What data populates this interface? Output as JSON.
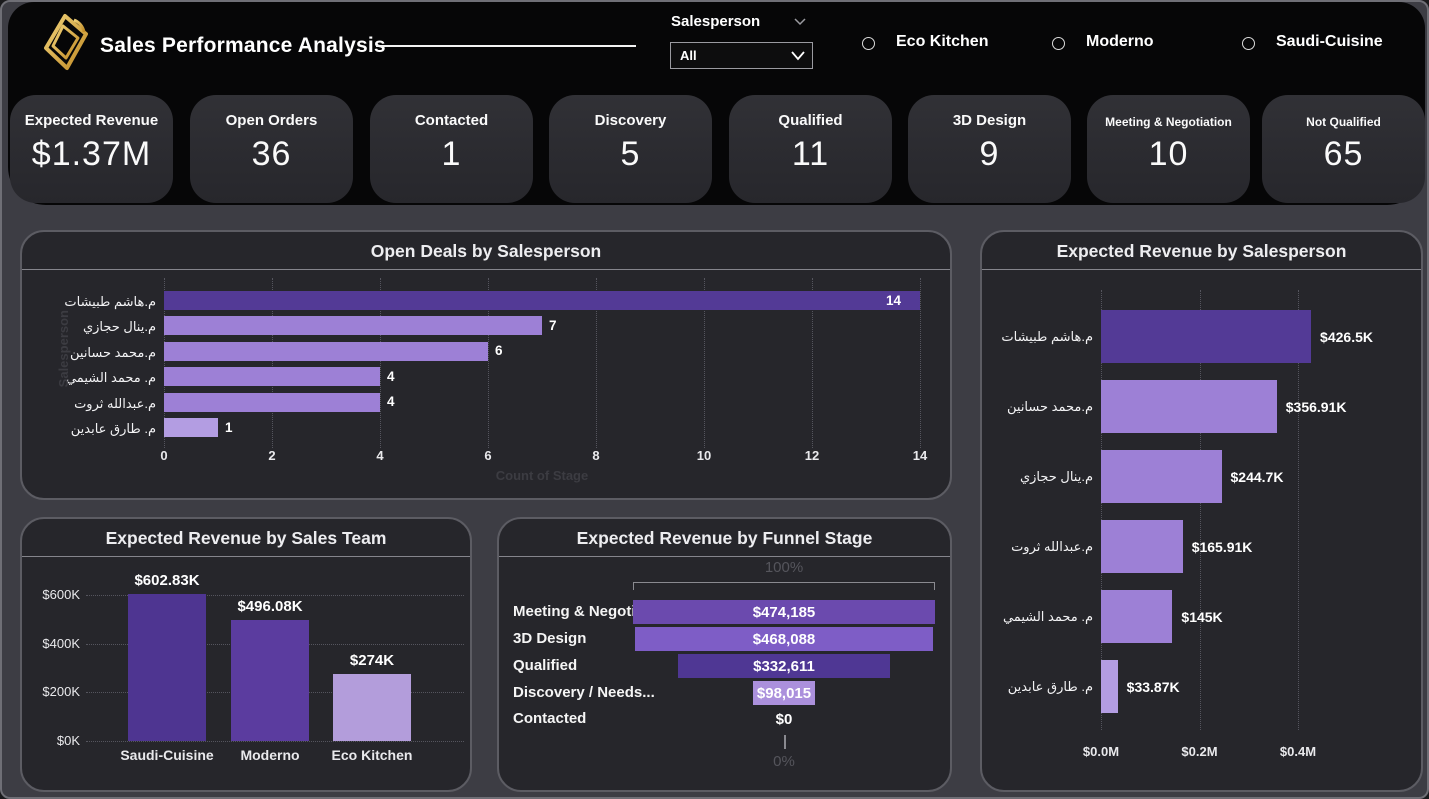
{
  "header": {
    "title": "Sales Performance Analysis",
    "slicer": {
      "label": "Salesperson",
      "value": "All"
    },
    "teams": [
      "Eco Kitchen",
      "Moderno",
      "Saudi-Cuisine"
    ]
  },
  "kpis": [
    {
      "label": "Expected Revenue",
      "value": "$1.37M"
    },
    {
      "label": "Open Orders",
      "value": "36"
    },
    {
      "label": "Contacted",
      "value": "1"
    },
    {
      "label": "Discovery",
      "value": "5"
    },
    {
      "label": "Qualified",
      "value": "11"
    },
    {
      "label": "3D Design",
      "value": "9"
    },
    {
      "label": "Meeting & Negotiation",
      "value": "10"
    },
    {
      "label": "Not Qualified",
      "value": "65"
    }
  ],
  "chart_data": [
    {
      "type": "bar",
      "orientation": "horizontal",
      "title": "Open Deals by Salesperson",
      "categories": [
        "م.هاشم طبيشات",
        "م.ينال حجازي",
        "م.محمد حسانين",
        "م. محمد الشيمي",
        "م.عبدالله ثروت",
        "م. طارق عابدين"
      ],
      "values": [
        14,
        7,
        6,
        4,
        4,
        1
      ],
      "bar_colors": [
        "#533a96",
        "#9d80d6",
        "#9d80d6",
        "#9d80d6",
        "#9d80d6",
        "#b39de2"
      ],
      "xlabel": "Count of Stage",
      "ylabel": "Salesperson",
      "x_ticks": [
        0,
        2,
        4,
        6,
        8,
        10,
        12,
        14
      ],
      "xlim": [
        0,
        14
      ],
      "grid": "dotted-vertical"
    },
    {
      "type": "bar",
      "orientation": "horizontal",
      "title": "Expected Revenue by Salesperson",
      "categories": [
        "م.هاشم طبيشات",
        "م.محمد حسانين",
        "م.ينال حجازي",
        "م.عبدالله ثروت",
        "م. محمد الشيمي",
        "م. طارق عابدين"
      ],
      "values": [
        426500,
        356910,
        244700,
        165910,
        145000,
        33870
      ],
      "value_labels": [
        "$426.5K",
        "$356.91K",
        "$244.7K",
        "$165.91K",
        "$145K",
        "$33.87K"
      ],
      "bar_colors": [
        "#533a96",
        "#9d80d6",
        "#9d80d6",
        "#9d80d6",
        "#9d80d6",
        "#b39de2"
      ],
      "x_ticks": [
        0,
        200000,
        400000
      ],
      "x_tick_labels": [
        "$0.0M",
        "$0.2M",
        "$0.4M"
      ],
      "xlim": [
        0,
        616000
      ],
      "grid": "dotted-vertical"
    },
    {
      "type": "bar",
      "orientation": "vertical",
      "title": "Expected Revenue by Sales Team",
      "categories": [
        "Saudi-Cuisine",
        "Moderno",
        "Eco Kitchen"
      ],
      "values": [
        602830,
        496080,
        274000
      ],
      "value_labels": [
        "$602.83K",
        "$496.08K",
        "$274K"
      ],
      "bar_colors": [
        "#4e3591",
        "#5b3c9f",
        "#b39ddb"
      ],
      "y_ticks": [
        0,
        200000,
        400000,
        600000
      ],
      "y_tick_labels": [
        "$0K",
        "$200K",
        "$400K",
        "$600K"
      ],
      "ylim": [
        0,
        665000
      ],
      "grid": "dotted-horizontal"
    },
    {
      "type": "funnel",
      "title": "Expected Revenue by Funnel Stage",
      "categories": [
        "Meeting & Negoti...",
        "3D Design",
        "Qualified",
        "Discovery / Needs...",
        "Contacted"
      ],
      "values": [
        474185,
        468088,
        332611,
        98015,
        0
      ],
      "value_labels": [
        "$474,185",
        "$468,088",
        "$332,611",
        "$98,015",
        "$0"
      ],
      "bar_colors": [
        "#6b4aae",
        "#7e5dc6",
        "#4f3794",
        "#ab90dc",
        "transparent"
      ],
      "top_label": "100%",
      "bottom_label": "0%"
    }
  ],
  "colors": {
    "accent_dark": "#533a96",
    "accent_light": "#9d80d6",
    "accent_lighter": "#b39de2",
    "gold": "#d3a238",
    "body_bg": "#3d3d44",
    "header_bg": "#060607",
    "panel_bg": "#26262b",
    "panel_border": "#5c5c63",
    "card_bg": "#2c2c31",
    "grid": "#55555e",
    "dim_text": "#47474d"
  }
}
